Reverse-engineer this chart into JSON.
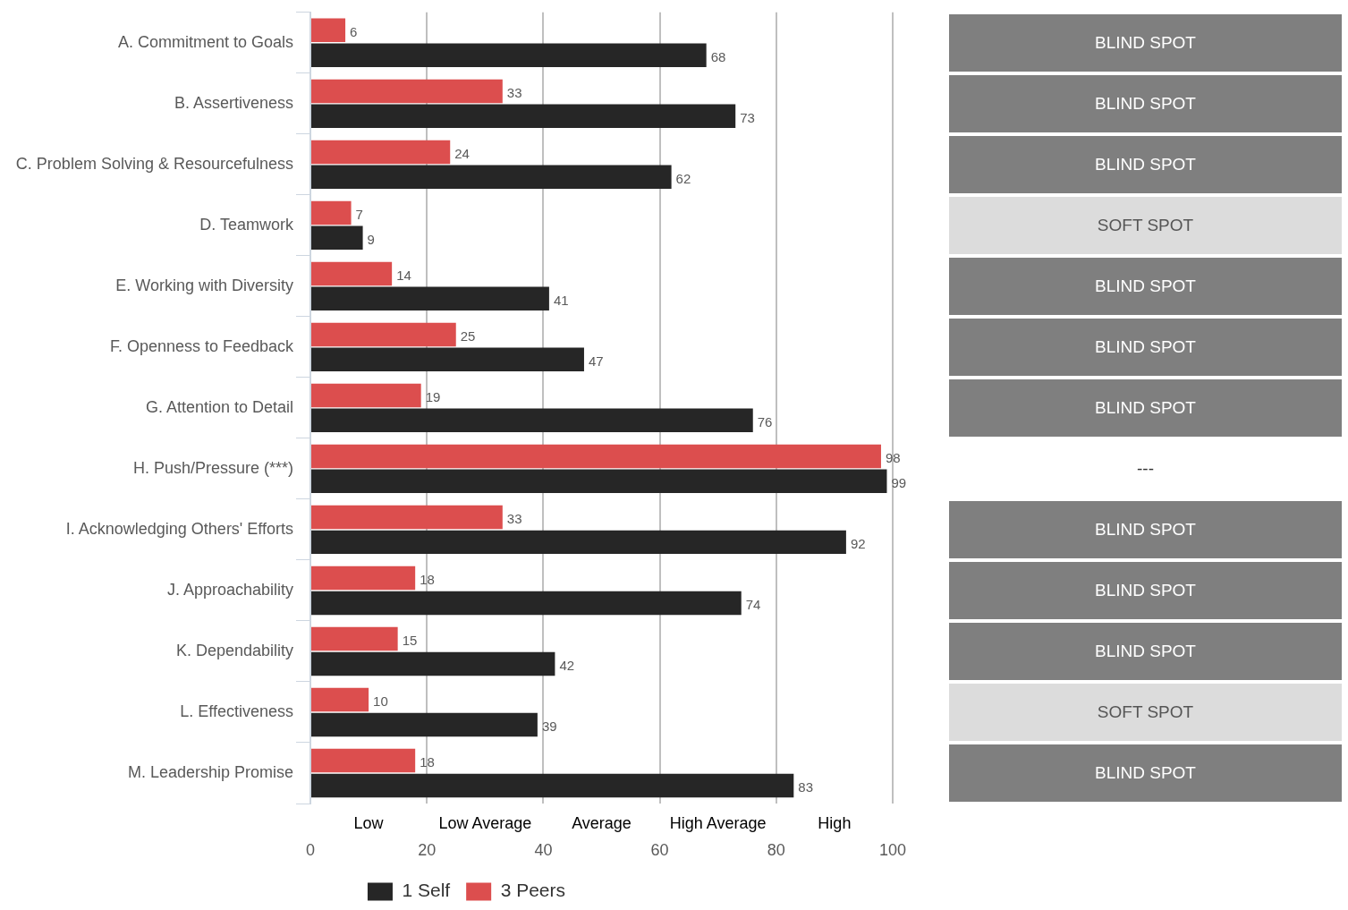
{
  "chart_data": [
    {
      "type": "bar",
      "orientation": "horizontal",
      "categories": [
        "A. Commitment to Goals",
        "B. Assertiveness",
        "C. Problem Solving & Resourcefulness",
        "D. Teamwork",
        "E. Working with Diversity",
        "F. Openness to Feedback",
        "G. Attention to Detail",
        "H. Push/Pressure (***)",
        "I. Acknowledging Others' Efforts",
        "J. Approachability",
        "K. Dependability",
        "L. Effectiveness",
        "M. Leadership Promise"
      ],
      "series": [
        {
          "name": "3 Peers",
          "color": "#dc4e4e",
          "values": [
            6,
            33,
            24,
            7,
            14,
            25,
            19,
            98,
            33,
            18,
            15,
            10,
            18
          ]
        },
        {
          "name": "1 Self",
          "color": "#262626",
          "values": [
            68,
            73,
            62,
            9,
            41,
            47,
            76,
            99,
            92,
            74,
            42,
            39,
            83
          ]
        }
      ],
      "xlim": [
        0,
        100
      ],
      "xticks": [
        0,
        20,
        40,
        60,
        80,
        100
      ],
      "grid": "x",
      "legend": "bottom",
      "data_labels": true,
      "annotations": [
        "Low",
        "Low Average",
        "Average",
        "High Average",
        "High"
      ]
    },
    {
      "type": "other",
      "annotations": [
        "BLIND SPOT",
        "BLIND SPOT",
        "BLIND SPOT",
        "SOFT SPOT",
        "BLIND SPOT",
        "BLIND SPOT",
        "BLIND SPOT",
        "---",
        "BLIND SPOT",
        "BLIND SPOT",
        "BLIND SPOT",
        "SOFT SPOT",
        "BLIND SPOT"
      ],
      "colors": [
        "#7f7f7f",
        "#7f7f7f",
        "#7f7f7f",
        "#dcdcdc",
        "#7f7f7f",
        "#7f7f7f",
        "#7f7f7f",
        null,
        "#7f7f7f",
        "#7f7f7f",
        "#7f7f7f",
        "#dcdcdc",
        "#7f7f7f"
      ]
    }
  ]
}
